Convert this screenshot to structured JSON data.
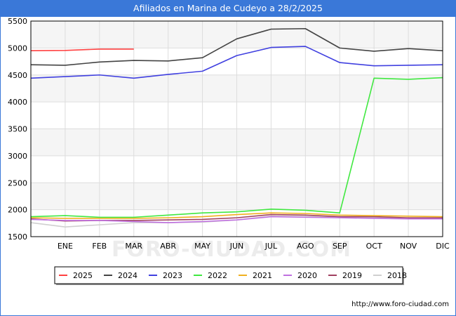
{
  "chart_data": {
    "type": "line",
    "title": "Afiliados en Marina de Cudeyo a 28/2/2025",
    "xlabel": "",
    "ylabel": "",
    "categories": [
      "ENE",
      "FEB",
      "MAR",
      "ABR",
      "MAY",
      "JUN",
      "JUL",
      "AGO",
      "SEP",
      "OCT",
      "NOV",
      "DIC"
    ],
    "ylim": [
      1500,
      5500
    ],
    "yticks": [
      1500,
      2000,
      2500,
      3000,
      3500,
      4000,
      4500,
      5000,
      5500
    ],
    "grid": true,
    "legend_position": "bottom",
    "series": [
      {
        "name": "2025",
        "color": "#ff4040",
        "x": [
          0,
          1,
          2,
          3
        ],
        "values": [
          4950,
          4955,
          4980,
          4980
        ]
      },
      {
        "name": "2024",
        "color": "#444444",
        "x": [
          0,
          1,
          2,
          3,
          4,
          5,
          6,
          7,
          8,
          9,
          10,
          11,
          12
        ],
        "values": [
          4690,
          4680,
          4740,
          4770,
          4760,
          4820,
          5170,
          5350,
          5360,
          5000,
          4940,
          4990,
          4950
        ]
      },
      {
        "name": "2023",
        "color": "#4040e0",
        "x": [
          0,
          1,
          2,
          3,
          4,
          5,
          6,
          7,
          8,
          9,
          10,
          11,
          12
        ],
        "values": [
          4440,
          4470,
          4500,
          4440,
          4510,
          4570,
          4860,
          5010,
          5030,
          4730,
          4670,
          4680,
          4690
        ]
      },
      {
        "name": "2022",
        "color": "#40e840",
        "x": [
          0,
          1,
          2,
          3,
          4,
          5,
          6,
          7,
          8,
          9,
          10,
          11,
          12
        ],
        "values": [
          1870,
          1890,
          1860,
          1860,
          1900,
          1940,
          1960,
          2010,
          1990,
          1940,
          4440,
          4420,
          4450
        ]
      },
      {
        "name": "2021",
        "color": "#f0b020",
        "x": [
          0,
          1,
          2,
          3,
          4,
          5,
          6,
          7,
          8,
          9,
          10,
          11,
          12
        ],
        "values": [
          1850,
          1840,
          1840,
          1840,
          1850,
          1870,
          1910,
          1940,
          1930,
          1900,
          1890,
          1880,
          1870
        ]
      },
      {
        "name": "2020",
        "color": "#c070e0",
        "x": [
          0,
          1,
          2,
          3,
          4,
          5,
          6,
          7,
          8,
          9,
          10,
          11,
          12
        ],
        "values": [
          1820,
          1800,
          1800,
          1780,
          1760,
          1780,
          1810,
          1870,
          1860,
          1850,
          1840,
          1830,
          1830
        ]
      },
      {
        "name": "2019",
        "color": "#a04060",
        "x": [
          0,
          1,
          2,
          3,
          4,
          5,
          6,
          7,
          8,
          9,
          10,
          11,
          12
        ],
        "values": [
          1830,
          1790,
          1800,
          1800,
          1810,
          1820,
          1850,
          1910,
          1900,
          1870,
          1870,
          1850,
          1850
        ]
      },
      {
        "name": "2018",
        "color": "#d0d0d0",
        "x": [
          0,
          1,
          2,
          3,
          4,
          5,
          6,
          7,
          8,
          9,
          10,
          11,
          12
        ],
        "values": [
          1760,
          1680,
          1720,
          1760,
          1760,
          1770,
          1810,
          1880,
          1870,
          1860,
          1860,
          1840,
          1840
        ]
      }
    ],
    "watermark": "FORO-CIUDAD.COM"
  },
  "footer": "http://www.foro-ciudad.com"
}
